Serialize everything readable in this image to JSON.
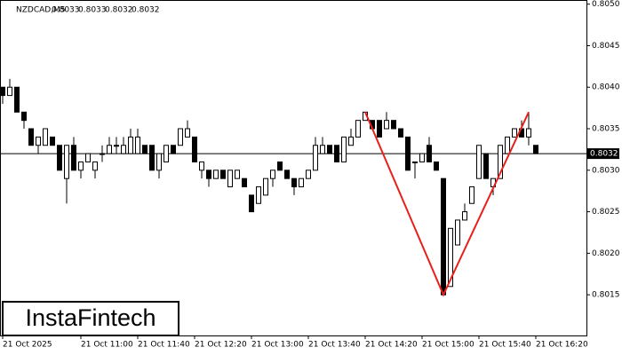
{
  "chart_data": {
    "type": "candlestick",
    "title": "NZDCAD,M5",
    "header_ohlc": [
      0.8033,
      0.8033,
      0.8032,
      0.8032
    ],
    "logo": "InstaFintech",
    "categories": [
      "21 Oct 2025",
      null,
      null,
      null,
      null,
      null,
      null,
      null,
      null,
      null,
      null,
      "21 Oct 11:00",
      null,
      null,
      null,
      null,
      null,
      null,
      null,
      "21 Oct 11:40",
      null,
      null,
      null,
      null,
      null,
      null,
      null,
      "21 Oct 12:20",
      null,
      null,
      null,
      null,
      null,
      null,
      null,
      "21 Oct 13:00",
      null,
      null,
      null,
      null,
      null,
      null,
      null,
      "21 Oct 13:40",
      null,
      null,
      null,
      null,
      null,
      null,
      null,
      "21 Oct 14:20",
      null,
      null,
      null,
      null,
      null,
      null,
      null,
      "21 Oct 15:00",
      null,
      null,
      null,
      null,
      null,
      null,
      null,
      "21 Oct 15:40",
      null,
      null,
      null,
      null,
      null,
      null,
      null,
      "21 Oct 16:20"
    ],
    "open": [
      0.804,
      0.8039,
      0.804,
      0.8037,
      0.8035,
      0.8033,
      0.8033,
      0.8034,
      0.8033,
      0.8029,
      0.8033,
      0.803,
      0.8031,
      0.803,
      0.8032,
      0.8032,
      0.8033,
      0.8032,
      0.8032,
      0.8032,
      0.8033,
      0.8033,
      0.803,
      0.8031,
      0.8033,
      0.8033,
      0.8034,
      0.8034,
      0.803,
      0.803,
      0.8029,
      0.803,
      0.8028,
      0.8029,
      0.8029,
      0.8027,
      0.8026,
      0.8027,
      0.8029,
      0.8031,
      0.803,
      0.8029,
      0.8028,
      0.8029,
      0.803,
      0.8032,
      0.8033,
      0.8033,
      0.8031,
      0.8033,
      0.8034,
      0.8036,
      0.8036,
      0.8036,
      0.8035,
      0.8036,
      0.8035,
      0.8034,
      0.8031,
      0.8031,
      0.8033,
      0.8031,
      0.8029,
      0.8016,
      0.8021,
      0.8024,
      0.8026,
      0.8029,
      0.8032,
      0.8028,
      0.8029,
      0.8032,
      0.8034,
      0.8035,
      0.8034,
      0.8033
    ],
    "high": [
      0.804,
      0.8041,
      0.804,
      0.8037,
      0.8035,
      0.8034,
      0.8035,
      0.8034,
      0.8033,
      0.8033,
      0.8034,
      0.8031,
      0.8032,
      0.8031,
      0.8033,
      0.8034,
      0.8034,
      0.8034,
      0.8035,
      0.8035,
      0.8033,
      0.8033,
      0.8032,
      0.8033,
      0.8033,
      0.8035,
      0.8036,
      0.8034,
      0.8031,
      0.803,
      0.803,
      0.803,
      0.803,
      0.803,
      0.8029,
      0.8027,
      0.8028,
      0.8029,
      0.803,
      0.8031,
      0.803,
      0.8029,
      0.8029,
      0.803,
      0.8034,
      0.8034,
      0.8033,
      0.8033,
      0.8034,
      0.8035,
      0.8036,
      0.8037,
      0.8036,
      0.8036,
      0.8037,
      0.8036,
      0.8035,
      0.8034,
      0.8031,
      0.8032,
      0.8034,
      0.8031,
      0.8029,
      0.8023,
      0.8024,
      0.8026,
      0.8028,
      0.8033,
      0.8032,
      0.8029,
      0.8033,
      0.8034,
      0.8035,
      0.8036,
      0.8037,
      0.8033
    ],
    "low": [
      0.8038,
      0.8039,
      0.8037,
      0.8035,
      0.8033,
      0.8032,
      0.8033,
      0.8033,
      0.803,
      0.8026,
      0.803,
      0.8029,
      0.8031,
      0.8029,
      0.8031,
      0.8032,
      0.8032,
      0.8032,
      0.8032,
      0.8032,
      0.8032,
      0.803,
      0.8029,
      0.8031,
      0.8032,
      0.8033,
      0.8034,
      0.8031,
      0.8029,
      0.8028,
      0.8029,
      0.8029,
      0.8028,
      0.8029,
      0.8028,
      0.8025,
      0.8026,
      0.8027,
      0.8028,
      0.803,
      0.8029,
      0.8027,
      0.8028,
      0.8029,
      0.803,
      0.8032,
      0.8032,
      0.8031,
      0.8031,
      0.8033,
      0.8034,
      0.8036,
      0.8035,
      0.8034,
      0.8035,
      0.8035,
      0.8034,
      0.803,
      0.8029,
      0.8031,
      0.8031,
      0.803,
      0.8015,
      0.8016,
      0.8021,
      0.8024,
      0.8026,
      0.8029,
      0.8029,
      0.8027,
      0.8029,
      0.8032,
      0.8034,
      0.8034,
      0.8033,
      0.8032
    ],
    "close": [
      0.8039,
      0.804,
      0.8037,
      0.8036,
      0.8033,
      0.8034,
      0.8035,
      0.8033,
      0.803,
      0.8033,
      0.803,
      0.8031,
      0.8032,
      0.8031,
      0.8032,
      0.8033,
      0.8033,
      0.8033,
      0.8034,
      0.8034,
      0.8032,
      0.803,
      0.8032,
      0.8033,
      0.8032,
      0.8035,
      0.8035,
      0.8031,
      0.8031,
      0.8029,
      0.803,
      0.8029,
      0.803,
      0.803,
      0.8028,
      0.8025,
      0.8028,
      0.8029,
      0.803,
      0.803,
      0.8029,
      0.8028,
      0.8029,
      0.803,
      0.8033,
      0.8033,
      0.8032,
      0.8031,
      0.8034,
      0.8034,
      0.8036,
      0.8037,
      0.8035,
      0.8034,
      0.8036,
      0.8035,
      0.8034,
      0.803,
      0.8031,
      0.8032,
      0.8031,
      0.803,
      0.8015,
      0.8023,
      0.8024,
      0.8025,
      0.8028,
      0.8033,
      0.8029,
      0.8029,
      0.8033,
      0.8034,
      0.8035,
      0.8034,
      0.8035,
      0.8032
    ],
    "up_color": "#ffffff",
    "down_color": "#000000",
    "pattern": {
      "color": "#e8201c",
      "x": [
        51,
        62,
        74
      ],
      "values": [
        0.8037,
        0.8015,
        0.8037
      ]
    },
    "current_price": 0.8032,
    "ylim": [
      0.80101,
      0.80505
    ],
    "yticks": [
      0.8015,
      {
        "value": 0.802,
        "label": "0.8020"
      },
      0.8025,
      {
        "value": 0.803,
        "label": "0.8030"
      },
      0.8035,
      {
        "value": 0.804,
        "label": "0.8040"
      },
      0.8045,
      {
        "value": 0.805,
        "label": "0.8050"
      }
    ]
  }
}
